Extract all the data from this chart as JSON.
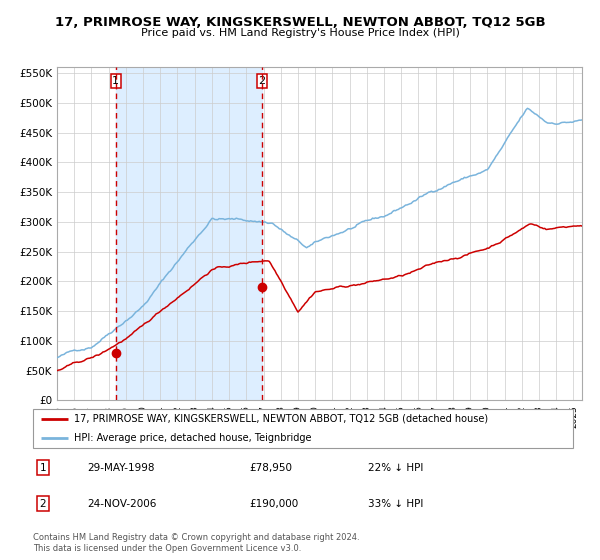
{
  "title": "17, PRIMROSE WAY, KINGSKERSWELL, NEWTON ABBOT, TQ12 5GB",
  "subtitle": "Price paid vs. HM Land Registry's House Price Index (HPI)",
  "legend_line1": "17, PRIMROSE WAY, KINGSKERSWELL, NEWTON ABBOT, TQ12 5GB (detached house)",
  "legend_line2": "HPI: Average price, detached house, Teignbridge",
  "table_row1": [
    "1",
    "29-MAY-1998",
    "£78,950",
    "22% ↓ HPI"
  ],
  "table_row2": [
    "2",
    "24-NOV-2006",
    "£190,000",
    "33% ↓ HPI"
  ],
  "footer": "Contains HM Land Registry data © Crown copyright and database right 2024.\nThis data is licensed under the Open Government Licence v3.0.",
  "purchase1_date": 1998.41,
  "purchase1_price": 78950,
  "purchase2_date": 2006.9,
  "purchase2_price": 190000,
  "hpi_color": "#7ab4dc",
  "price_color": "#cc0000",
  "dashed_color": "#cc0000",
  "shade_color": "#ddeeff",
  "ylim": [
    0,
    560000
  ],
  "yticks": [
    0,
    50000,
    100000,
    150000,
    200000,
    250000,
    300000,
    350000,
    400000,
    450000,
    500000,
    550000
  ],
  "xlim_start": 1995.0,
  "xlim_end": 2025.5
}
